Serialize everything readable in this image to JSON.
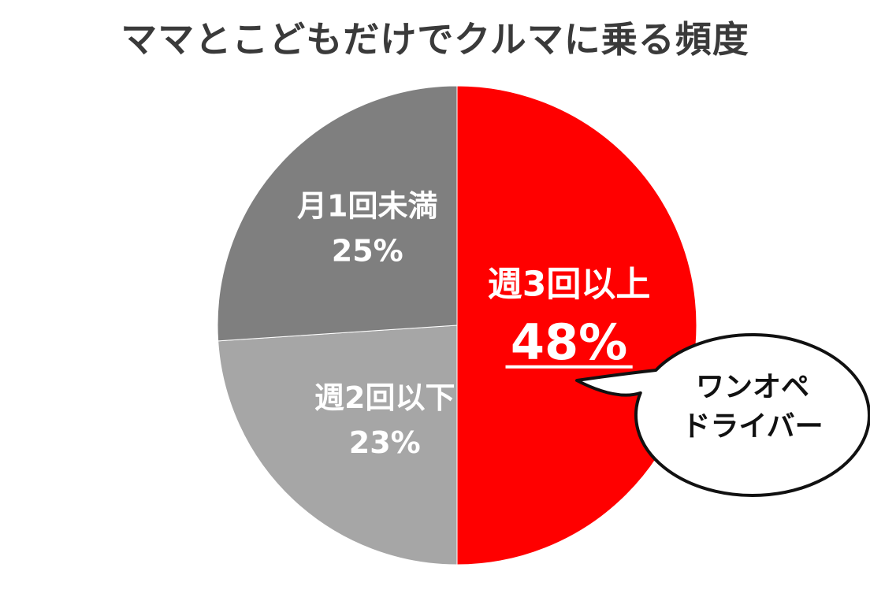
{
  "chart_data": {
    "type": "pie",
    "title": "ママとこどもだけでクルマに乗る頻度",
    "slices": [
      {
        "label": "週3回以上",
        "value": 48,
        "value_text": "48%",
        "color": "#ff0000",
        "emphasis": true
      },
      {
        "label": "週2回以下",
        "value": 23,
        "value_text": "23%",
        "color": "#a6a6a6",
        "emphasis": false
      },
      {
        "label": "月1回未満",
        "value": 25,
        "value_text": "25%",
        "color": "#7f7f7f",
        "emphasis": false
      }
    ],
    "start_angle_deg": 0,
    "direction": "clockwise",
    "legend": "none",
    "annotation": {
      "type": "speech-bubble",
      "lines": [
        "ワンオペ",
        "ドライバー"
      ],
      "points_to": "週3回以上"
    }
  }
}
